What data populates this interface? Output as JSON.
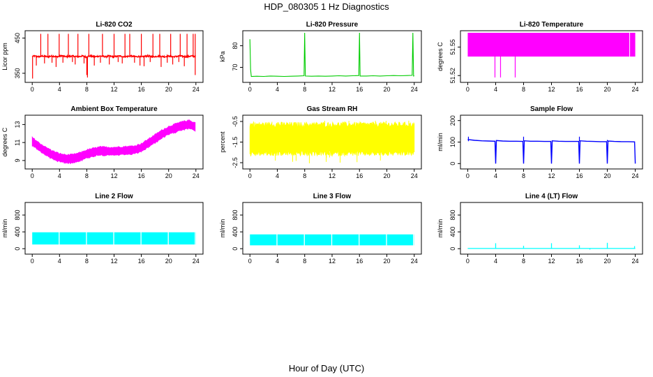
{
  "figure": {
    "title": "HDP_080305  1 Hz Diagnostics",
    "xlabel": "Hour of Day (UTC)"
  },
  "chart_data": [
    {
      "type": "line",
      "title": "Li-820 CO2",
      "ylabel": "Licor ppm",
      "color": "#ff0000",
      "xlim": [
        0,
        24
      ],
      "ylim": [
        330,
        465
      ],
      "xticks": [
        0,
        4,
        8,
        12,
        16,
        20,
        24
      ],
      "yticks": [
        350,
        450
      ],
      "xtick_labels": [
        "0",
        "4",
        "8",
        "12",
        "16",
        "20",
        "24"
      ],
      "ytick_labels": [
        "350",
        "450"
      ],
      "baseline": 398,
      "x": [
        0,
        0.4,
        0.5,
        1.0,
        1.3,
        1.5,
        2.0,
        2.3,
        2.5,
        3.0,
        3.3,
        3.6,
        4.0,
        4.3,
        4.7,
        5.0,
        5.4,
        5.8,
        6.3,
        6.7,
        7.0,
        7.3,
        7.7,
        7.9,
        8.2,
        8.5,
        8.8,
        9.2,
        9.6,
        10.0,
        10.4,
        10.8,
        11.2,
        11.6,
        12.0,
        12.4,
        12.8,
        13.2,
        13.6,
        14.0,
        14.4,
        14.8,
        15.3,
        15.7,
        16.0,
        16.5,
        16.9,
        17.3,
        17.7,
        18.2,
        18.6,
        19.0,
        19.5,
        19.9,
        20.3,
        20.8,
        21.2,
        21.6,
        22.1,
        22.5,
        23.0,
        23.4,
        23.8,
        24.0
      ],
      "y": [
        398,
        399,
        398,
        397,
        398,
        399,
        398,
        396,
        398,
        399,
        398,
        397,
        398,
        400,
        398,
        397,
        398,
        399,
        398,
        397,
        398,
        399,
        398,
        396,
        398,
        399,
        398,
        397,
        398,
        399,
        398,
        397,
        399,
        398,
        397,
        398,
        399,
        398,
        397,
        398,
        399,
        398,
        397,
        398,
        396,
        398,
        399,
        398,
        397,
        398,
        399,
        398,
        397,
        399,
        398,
        397,
        398,
        399,
        398,
        397,
        398,
        399,
        398,
        398
      ],
      "spikes_up": [
        1.25,
        2.3,
        3.95,
        5.3,
        6.7,
        8.3,
        10.3,
        12.0,
        13.6,
        14.3,
        16.0,
        17.7,
        18.7,
        20.3,
        21.7,
        22.7,
        23.6,
        23.9
      ],
      "spike_up_value": 462,
      "spikes_down": [
        0.05,
        0.6,
        1.8,
        2.9,
        3.5,
        4.5,
        5.9,
        6.3,
        7.6,
        8.0,
        8.1,
        9.1,
        10.0,
        11.3,
        12.6,
        13.2,
        15.0,
        15.8,
        16.4,
        17.3,
        18.9,
        19.8,
        20.6,
        21.5,
        22.3,
        23.9
      ],
      "spike_down_values": [
        335,
        372,
        378,
        380,
        368,
        380,
        382,
        375,
        378,
        345,
        338,
        372,
        380,
        375,
        382,
        378,
        380,
        372,
        370,
        382,
        368,
        380,
        375,
        382,
        370,
        345
      ]
    },
    {
      "type": "line",
      "title": "Li-820 Pressure",
      "ylabel": "kPa",
      "color": "#00cc00",
      "xlim": [
        0,
        24
      ],
      "ylim": [
        64,
        86
      ],
      "xticks": [
        0,
        4,
        8,
        12,
        16,
        20,
        24
      ],
      "yticks": [
        70,
        80
      ],
      "xtick_labels": [
        "0",
        "4",
        "8",
        "12",
        "16",
        "20",
        "24"
      ],
      "ytick_labels": [
        "70",
        "80"
      ],
      "x": [
        0,
        0.1,
        0.2,
        1,
        2,
        3,
        4,
        5,
        6,
        7,
        7.9,
        8.0,
        8.1,
        9,
        10,
        11,
        12,
        13,
        14,
        15,
        15.9,
        16.0,
        16.1,
        17,
        18,
        19,
        20,
        21,
        22,
        23,
        23.7,
        23.8,
        23.9,
        24
      ],
      "y": [
        83,
        69,
        65.8,
        65.9,
        65.8,
        66.0,
        65.9,
        65.8,
        65.9,
        66.0,
        66.1,
        86,
        66.0,
        65.9,
        66.0,
        65.9,
        66.0,
        66.1,
        66.0,
        66.1,
        66.2,
        86,
        66.0,
        66.0,
        66.1,
        66.0,
        66.1,
        66.2,
        66.1,
        66.2,
        66.3,
        86,
        66.0,
        66.1
      ]
    },
    {
      "type": "area",
      "title": "Li-820 Temperature",
      "ylabel": "degrees C",
      "color": "#ff00ff",
      "xlim": [
        0,
        24
      ],
      "ylim": [
        51.515,
        51.565
      ],
      "xticks": [
        0,
        4,
        8,
        12,
        16,
        20,
        24
      ],
      "yticks": [
        51.52,
        51.55
      ],
      "xtick_labels": [
        "0",
        "4",
        "8",
        "12",
        "16",
        "20",
        "24"
      ],
      "ytick_labels": [
        "51.52",
        "51.55"
      ],
      "band_low": 51.54,
      "band_high": 51.565,
      "band_gaps": [
        23.2
      ],
      "dips_x": [
        3.9,
        4.7,
        6.8
      ],
      "dips_y": [
        51.518,
        51.518,
        51.518
      ]
    },
    {
      "type": "line",
      "title": "Ambient Box Temperature",
      "ylabel": "degrees C",
      "color": "#ff00ff",
      "xlim": [
        0,
        24
      ],
      "ylim": [
        8.3,
        13.8
      ],
      "xticks": [
        0,
        4,
        8,
        12,
        16,
        20,
        24
      ],
      "yticks": [
        9,
        11,
        13
      ],
      "xtick_labels": [
        "0",
        "4",
        "8",
        "12",
        "16",
        "20",
        "24"
      ],
      "ytick_labels": [
        "9",
        "11",
        "13"
      ],
      "x": [
        0,
        1,
        2,
        3,
        4,
        5,
        6,
        7,
        8,
        9,
        10,
        11,
        12,
        13,
        14,
        15,
        16,
        17,
        18,
        19,
        20,
        21,
        22,
        23,
        24
      ],
      "y": [
        11.1,
        10.5,
        10.0,
        9.6,
        9.3,
        9.15,
        9.2,
        9.4,
        9.7,
        9.9,
        10.05,
        10.0,
        10.0,
        10.05,
        10.1,
        10.15,
        10.4,
        10.9,
        11.4,
        11.9,
        12.3,
        12.6,
        12.85,
        13.0,
        12.7
      ],
      "noise_amplitude": 0.55
    },
    {
      "type": "line",
      "title": "Gas Stream RH",
      "ylabel": "percent",
      "color": "#ffff00",
      "xlim": [
        0,
        24
      ],
      "ylim": [
        -2.7,
        -0.3
      ],
      "xticks": [
        0,
        4,
        8,
        12,
        16,
        20,
        24
      ],
      "yticks": [
        -2.5,
        -1.5,
        -0.5
      ],
      "xtick_labels": [
        "0",
        "4",
        "8",
        "12",
        "16",
        "20",
        "24"
      ],
      "ytick_labels": [
        "-2.5",
        "-1.5",
        "-0.5"
      ],
      "band_low": -2.0,
      "band_high": -0.7,
      "extreme_low": -2.55,
      "extreme_high": -0.45
    },
    {
      "type": "line",
      "title": "Sample Flow",
      "ylabel": "ml/min",
      "color": "#0000ff",
      "xlim": [
        0,
        24
      ],
      "ylim": [
        -15,
        215
      ],
      "xticks": [
        0,
        4,
        8,
        12,
        16,
        20,
        24
      ],
      "yticks": [
        0,
        100,
        200
      ],
      "xtick_labels": [
        "0",
        "4",
        "8",
        "12",
        "16",
        "20",
        "24"
      ],
      "ytick_labels": [
        "0",
        "100",
        "200"
      ],
      "x": [
        0,
        1,
        2,
        3,
        3.9,
        4.0,
        4.1,
        5,
        6,
        7,
        7.9,
        8.0,
        8.1,
        9,
        10,
        11,
        11.9,
        12.0,
        12.1,
        13,
        14,
        15,
        15.9,
        16.0,
        16.1,
        17,
        18,
        19,
        19.9,
        20.0,
        20.1,
        21,
        22,
        23,
        23.9,
        24.0
      ],
      "y": [
        112,
        108,
        106,
        105,
        104,
        0,
        107,
        105,
        104,
        104,
        103,
        0,
        106,
        104,
        104,
        103,
        103,
        0,
        106,
        104,
        103,
        103,
        103,
        0,
        106,
        104,
        103,
        102,
        102,
        0,
        105,
        103,
        102,
        102,
        101,
        0
      ],
      "spikes_up_x": [
        0.1,
        8.0,
        16.0,
        20.0
      ],
      "spikes_up_y": [
        125,
        125,
        125,
        110
      ]
    },
    {
      "type": "area",
      "title": "Line 2 Flow",
      "ylabel": "ml/min",
      "color": "#00ffff",
      "xlim": [
        0,
        24
      ],
      "ylim": [
        -80,
        1050
      ],
      "xticks": [
        0,
        4,
        8,
        12,
        16,
        20,
        24
      ],
      "yticks": [
        0,
        400,
        800
      ],
      "xtick_labels": [
        "0",
        "4",
        "8",
        "12",
        "16",
        "20",
        "24"
      ],
      "ytick_labels": [
        "0",
        "400",
        "800"
      ],
      "band_low": 100,
      "band_high": 390,
      "band_gaps": [
        3.95,
        7.95,
        11.95,
        15.95,
        19.95,
        23.9
      ]
    },
    {
      "type": "area",
      "title": "Line 3 Flow",
      "ylabel": "ml/min",
      "color": "#00ffff",
      "xlim": [
        0,
        24
      ],
      "ylim": [
        -80,
        1050
      ],
      "xticks": [
        0,
        4,
        8,
        12,
        16,
        20,
        24
      ],
      "yticks": [
        0,
        400,
        800
      ],
      "xtick_labels": [
        "0",
        "4",
        "8",
        "12",
        "16",
        "20",
        "24"
      ],
      "ytick_labels": [
        "0",
        "400",
        "800"
      ],
      "band_low": 80,
      "band_high": 340,
      "band_gaps": [
        3.95,
        7.95,
        11.95,
        15.95,
        19.95,
        23.9
      ]
    },
    {
      "type": "line",
      "title": "Line 4 (LT) Flow",
      "ylabel": "ml/min",
      "color": "#00ffff",
      "xlim": [
        0,
        24
      ],
      "ylim": [
        -80,
        1050
      ],
      "xticks": [
        0,
        4,
        8,
        12,
        16,
        20,
        24
      ],
      "yticks": [
        0,
        400,
        800
      ],
      "xtick_labels": [
        "0",
        "4",
        "8",
        "12",
        "16",
        "20",
        "24"
      ],
      "ytick_labels": [
        "0",
        "400",
        "800"
      ],
      "x": [
        0,
        24
      ],
      "y": [
        5,
        5
      ],
      "spikes_x": [
        4.0,
        8.0,
        12.0,
        16.0,
        17.5,
        20.0,
        23.9
      ],
      "spikes_y": [
        130,
        70,
        130,
        80,
        -20,
        140,
        60
      ]
    }
  ]
}
